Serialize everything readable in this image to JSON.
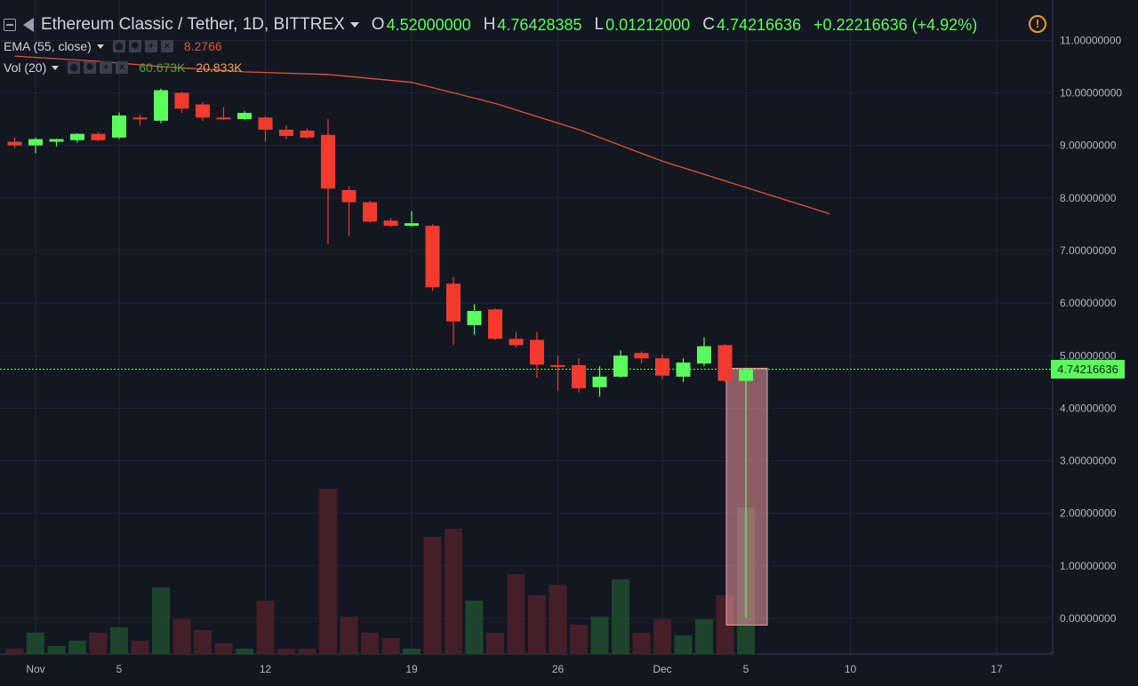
{
  "header": {
    "symbol": "Ethereum Classic / Tether, 1D, BITTREX",
    "ohlc": [
      {
        "key": "O",
        "value": "4.52000000"
      },
      {
        "key": "H",
        "value": "4.76428385"
      },
      {
        "key": "L",
        "value": "0.01212000"
      },
      {
        "key": "C",
        "value": "4.74216636"
      }
    ],
    "change": "+0.22216636 (+4.92%)"
  },
  "indicators": {
    "ema": {
      "label": "EMA (55, close)",
      "value": "8.2766"
    },
    "vol": {
      "label": "Vol (20)",
      "value1": "60.673K",
      "value2": "20.833K"
    }
  },
  "last_price": "4.74216636",
  "colors": {
    "background": "#131722",
    "up": "#5bff5b",
    "down": "#f23b2e",
    "ema": "#e0542f",
    "vol_up": "#1f4a2e",
    "vol_down": "#4a2028",
    "grid": "#222733",
    "alert": "#f39a2c"
  },
  "icons": [
    "collapse-icon",
    "flag-icon",
    "symbol-dropdown-icon",
    "eye-icon",
    "gear-icon",
    "plus-icon",
    "close-icon",
    "alert-icon"
  ],
  "chart_data": {
    "type": "candlestick",
    "title": "Ethereum Classic / Tether, 1D, BITTREX",
    "y_axis": {
      "min": 0,
      "max": 11,
      "ticks": [
        "0.00000000",
        "1.00000000",
        "2.00000000",
        "3.00000000",
        "4.00000000",
        "5.00000000",
        "6.00000000",
        "7.00000000",
        "8.00000000",
        "9.00000000",
        "10.00000000",
        "11.00000000"
      ]
    },
    "x_ticks": [
      {
        "label": "Nov",
        "day": 0
      },
      {
        "label": "5",
        "day": 4
      },
      {
        "label": "12",
        "day": 11
      },
      {
        "label": "19",
        "day": 18
      },
      {
        "label": "26",
        "day": 25
      },
      {
        "label": "Dec",
        "day": 30
      },
      {
        "label": "5",
        "day": 34
      },
      {
        "label": "10",
        "day": 39
      },
      {
        "label": "17",
        "day": 46
      }
    ],
    "candles": [
      {
        "day": -1,
        "o": 9.07,
        "h": 9.15,
        "l": 8.95,
        "c": 9.0
      },
      {
        "day": 0,
        "o": 9.0,
        "h": 9.15,
        "l": 8.85,
        "c": 9.12
      },
      {
        "day": 1,
        "o": 9.07,
        "h": 9.13,
        "l": 8.98,
        "c": 9.12
      },
      {
        "day": 2,
        "o": 9.1,
        "h": 9.23,
        "l": 9.05,
        "c": 9.22
      },
      {
        "day": 3,
        "o": 9.22,
        "h": 9.26,
        "l": 9.08,
        "c": 9.1
      },
      {
        "day": 4,
        "o": 9.15,
        "h": 9.63,
        "l": 9.12,
        "c": 9.57
      },
      {
        "day": 5,
        "o": 9.53,
        "h": 9.58,
        "l": 9.38,
        "c": 9.5
      },
      {
        "day": 6,
        "o": 9.47,
        "h": 10.08,
        "l": 9.42,
        "c": 10.05
      },
      {
        "day": 7,
        "o": 10.0,
        "h": 10.02,
        "l": 9.62,
        "c": 9.7
      },
      {
        "day": 8,
        "o": 9.78,
        "h": 9.82,
        "l": 9.47,
        "c": 9.53
      },
      {
        "day": 9,
        "o": 9.53,
        "h": 9.73,
        "l": 9.48,
        "c": 9.52
      },
      {
        "day": 10,
        "o": 9.5,
        "h": 9.65,
        "l": 9.48,
        "c": 9.62
      },
      {
        "day": 11,
        "o": 9.53,
        "h": 9.56,
        "l": 9.07,
        "c": 9.3
      },
      {
        "day": 12,
        "o": 9.3,
        "h": 9.38,
        "l": 9.12,
        "c": 9.18
      },
      {
        "day": 13,
        "o": 9.28,
        "h": 9.32,
        "l": 9.13,
        "c": 9.15
      },
      {
        "day": 14,
        "o": 9.2,
        "h": 9.5,
        "l": 7.12,
        "c": 8.18
      },
      {
        "day": 15,
        "o": 8.15,
        "h": 8.22,
        "l": 7.28,
        "c": 7.92
      },
      {
        "day": 16,
        "o": 7.92,
        "h": 7.94,
        "l": 7.53,
        "c": 7.55
      },
      {
        "day": 17,
        "o": 7.57,
        "h": 7.62,
        "l": 7.45,
        "c": 7.47
      },
      {
        "day": 18,
        "o": 7.47,
        "h": 7.75,
        "l": 7.45,
        "c": 7.52
      },
      {
        "day": 19,
        "o": 7.47,
        "h": 7.5,
        "l": 6.23,
        "c": 6.3
      },
      {
        "day": 20,
        "o": 6.37,
        "h": 6.5,
        "l": 5.2,
        "c": 5.65
      },
      {
        "day": 21,
        "o": 5.58,
        "h": 5.98,
        "l": 5.4,
        "c": 5.85
      },
      {
        "day": 22,
        "o": 5.88,
        "h": 5.9,
        "l": 5.3,
        "c": 5.32
      },
      {
        "day": 23,
        "o": 5.32,
        "h": 5.45,
        "l": 5.15,
        "c": 5.2
      },
      {
        "day": 24,
        "o": 5.3,
        "h": 5.45,
        "l": 4.58,
        "c": 4.83
      },
      {
        "day": 25,
        "o": 4.82,
        "h": 5.0,
        "l": 4.33,
        "c": 4.8
      },
      {
        "day": 26,
        "o": 4.82,
        "h": 4.95,
        "l": 4.3,
        "c": 4.38
      },
      {
        "day": 27,
        "o": 4.4,
        "h": 4.8,
        "l": 4.22,
        "c": 4.6
      },
      {
        "day": 28,
        "o": 4.6,
        "h": 5.1,
        "l": 4.58,
        "c": 5.0
      },
      {
        "day": 29,
        "o": 5.05,
        "h": 5.08,
        "l": 4.85,
        "c": 4.95
      },
      {
        "day": 30,
        "o": 4.95,
        "h": 5.03,
        "l": 4.55,
        "c": 4.62
      },
      {
        "day": 31,
        "o": 4.6,
        "h": 4.95,
        "l": 4.5,
        "c": 4.87
      },
      {
        "day": 32,
        "o": 4.85,
        "h": 5.35,
        "l": 4.8,
        "c": 5.18
      },
      {
        "day": 33,
        "o": 5.2,
        "h": 5.22,
        "l": 4.5,
        "c": 4.52
      },
      {
        "day": 34,
        "o": 4.52,
        "h": 4.76,
        "l": 0.01,
        "c": 4.74
      }
    ],
    "volume_rel": [
      0.02,
      0.08,
      0.03,
      0.05,
      0.08,
      0.1,
      0.05,
      0.25,
      0.13,
      0.09,
      0.04,
      0.02,
      0.2,
      0.02,
      0.02,
      0.62,
      0.14,
      0.08,
      0.06,
      0.02,
      0.44,
      0.47,
      0.2,
      0.08,
      0.3,
      0.22,
      0.26,
      0.11,
      0.14,
      0.28,
      0.08,
      0.13,
      0.07,
      0.13,
      0.22,
      0.55
    ],
    "ema_line": [
      {
        "day": -1,
        "v": 10.7
      },
      {
        "day": 3,
        "v": 10.6
      },
      {
        "day": 6,
        "v": 10.5
      },
      {
        "day": 10,
        "v": 10.4
      },
      {
        "day": 14,
        "v": 10.35
      },
      {
        "day": 18,
        "v": 10.2
      },
      {
        "day": 22,
        "v": 9.8
      },
      {
        "day": 26,
        "v": 9.3
      },
      {
        "day": 30,
        "v": 8.7
      },
      {
        "day": 34,
        "v": 8.2
      },
      {
        "day": 38,
        "v": 7.7
      }
    ],
    "grid": true
  }
}
